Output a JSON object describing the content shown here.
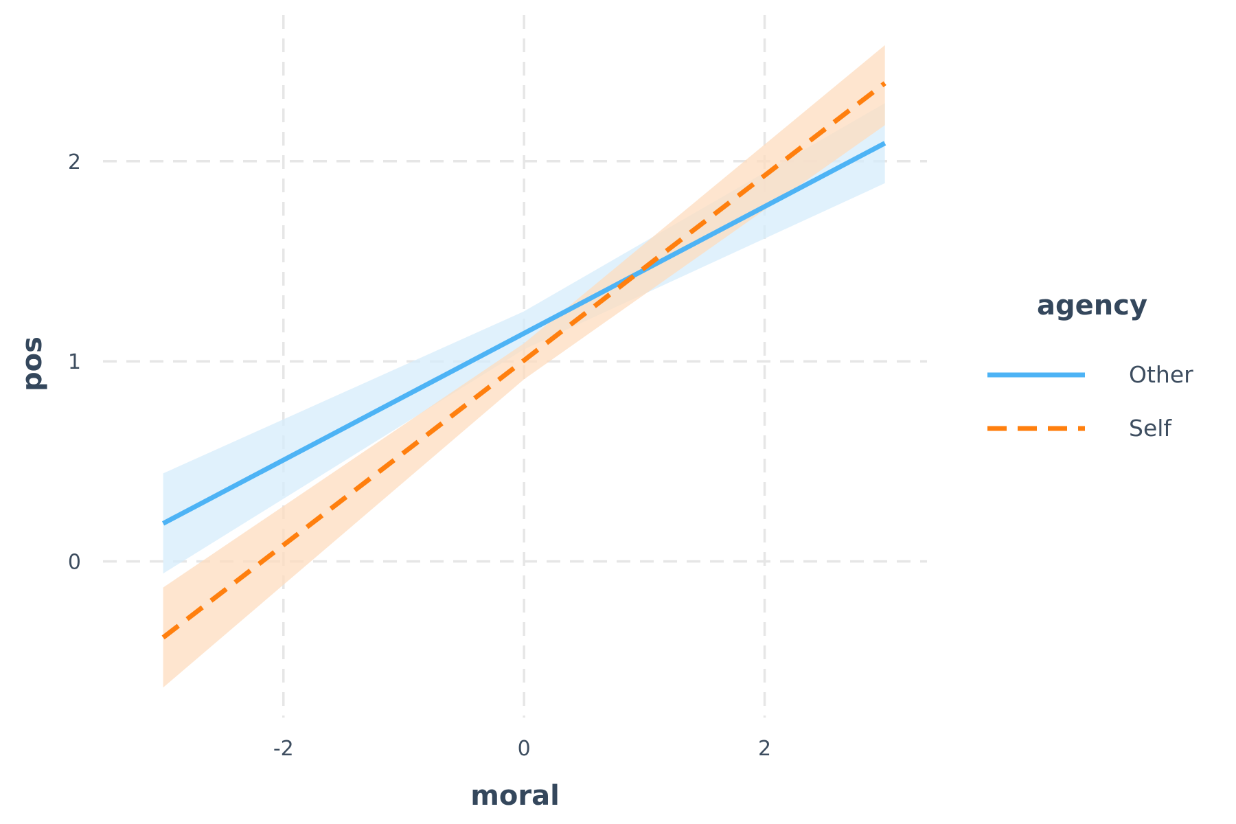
{
  "chart_data": {
    "type": "line",
    "xlabel": "moral",
    "ylabel": "pos",
    "xlim": [
      -3.5,
      3.35
    ],
    "ylim": [
      -0.78,
      2.73
    ],
    "x_ticks": [
      -2,
      0,
      2
    ],
    "x_tick_labels": [
      "-2",
      "0",
      "2"
    ],
    "y_ticks": [
      0,
      1,
      2
    ],
    "y_tick_labels": [
      "0",
      "1",
      "2"
    ],
    "grid": true,
    "grid_style": "dashed",
    "legend": {
      "title": "agency",
      "placement": "right",
      "entries": [
        "Other",
        "Self"
      ]
    },
    "series": [
      {
        "name": "Other",
        "color": "#4db3f5",
        "band_color": "#d6ecfb",
        "line_style": "solid",
        "x": [
          -3,
          3
        ],
        "y": [
          0.19,
          2.09
        ],
        "ci_lower": [
          -0.06,
          1.89
        ],
        "ci_upper": [
          0.44,
          2.29
        ],
        "ci_mid": {
          "x": 0,
          "lower": 1.06,
          "upper": 1.25
        }
      },
      {
        "name": "Self",
        "color": "#ff7f0e",
        "band_color": "#fddcbf",
        "line_style": "dashed",
        "x": [
          -3,
          3
        ],
        "y": [
          -0.38,
          2.39
        ],
        "ci_lower": [
          -0.63,
          2.18
        ],
        "ci_upper": [
          -0.13,
          2.58
        ],
        "ci_mid": {
          "x": 0,
          "lower": 0.91,
          "upper": 1.09
        }
      }
    ]
  }
}
